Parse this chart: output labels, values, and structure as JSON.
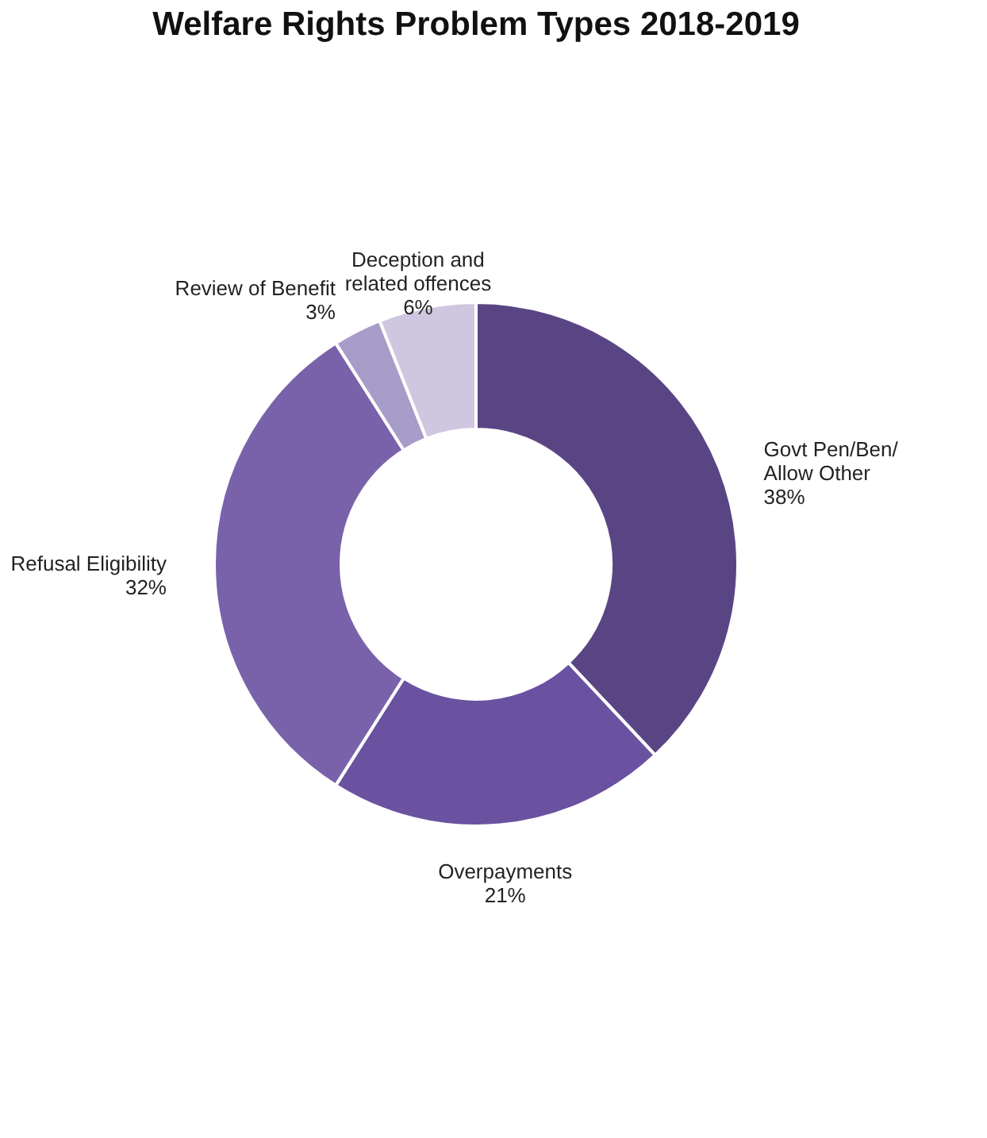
{
  "chart_data": {
    "type": "donut",
    "title": "Welfare Rights Problem Types 2018-2019",
    "categories": [
      "Govt Pen/Ben/\nAllow Other",
      "Overpayments",
      "Refusal Eligibility",
      "Review of Benefit",
      "Deception and\nrelated offences"
    ],
    "values": [
      38,
      21,
      32,
      3,
      6
    ],
    "value_labels": [
      "38%",
      "21%",
      "32%",
      "3%",
      "6%"
    ],
    "colors": [
      "#5a4584",
      "#6a52a0",
      "#7a62aa",
      "#a79cc8",
      "#cfc6e0"
    ],
    "legend": false
  }
}
